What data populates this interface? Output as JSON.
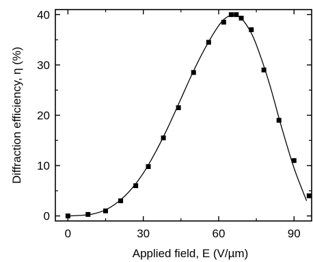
{
  "chart_data": {
    "type": "scatter",
    "xlabel": "Applied field, E (V/µm)",
    "ylabel": "Diffraction efficiency, η (%)",
    "xlim": [
      -5,
      97
    ],
    "ylim": [
      -1,
      41
    ],
    "xticks": [
      0,
      30,
      60,
      90
    ],
    "yticks": [
      0,
      10,
      20,
      30,
      40
    ],
    "minor_ticks": true,
    "grid": false,
    "series": [
      {
        "style": "markers",
        "marker": "square",
        "color": "#000000",
        "x": [
          0,
          8,
          15,
          21,
          27,
          32,
          38,
          44,
          50,
          56,
          62,
          65,
          67,
          69,
          73,
          78,
          84,
          90,
          96
        ],
        "y": [
          0,
          0.3,
          1.0,
          3.0,
          6.0,
          9.8,
          15.5,
          21.5,
          28.5,
          34.5,
          38.5,
          40.0,
          40.0,
          39.3,
          37.0,
          29.0,
          19.0,
          11.0,
          4.0
        ]
      },
      {
        "style": "line",
        "color": "#000000",
        "x": [
          0,
          5,
          10,
          15,
          20,
          25,
          30,
          35,
          40,
          45,
          50,
          55,
          60,
          63,
          66,
          69,
          72,
          75,
          80,
          85,
          90,
          95
        ],
        "y": [
          0,
          0.1,
          0.4,
          1.2,
          2.8,
          5.2,
          8.5,
          12.8,
          17.8,
          23.3,
          28.8,
          33.7,
          37.8,
          39.4,
          39.9,
          39.2,
          37.2,
          34.0,
          26.6,
          17.7,
          9.5,
          3.0
        ]
      }
    ]
  }
}
